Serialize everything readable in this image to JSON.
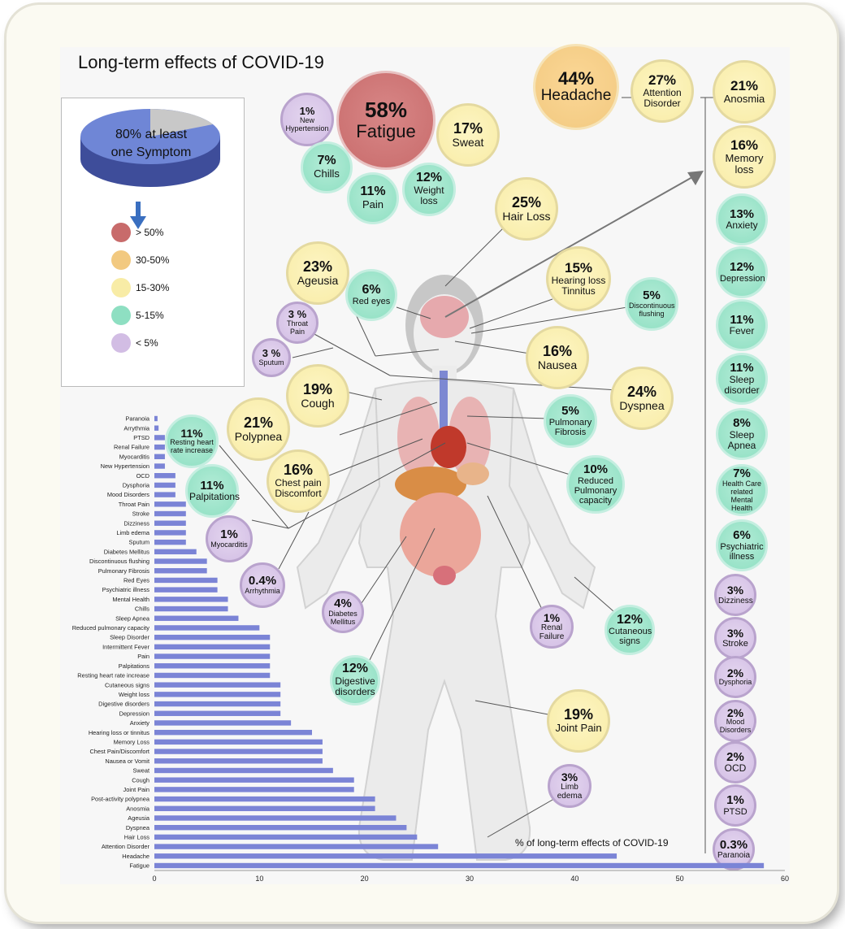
{
  "title": "Long-term effects of COVID-19",
  "pie": {
    "label_line1": "80% at least",
    "label_line2": "one Symptom",
    "percent": 80
  },
  "legend": [
    {
      "label": "> 50%",
      "color": "#c86b6b"
    },
    {
      "label": "30-50%",
      "color": "#f2c980"
    },
    {
      "label": "15-30%",
      "color": "#f8eca6"
    },
    {
      "label": "5-15%",
      "color": "#8edfc2"
    },
    {
      "label": "< 5%",
      "color": "#d2bde4"
    }
  ],
  "bubbles": [
    {
      "pct": "58%",
      "label": "Fatigue",
      "cls": "red"
    },
    {
      "pct": "1%",
      "label": "New Hypertension",
      "cls": "purple"
    },
    {
      "pct": "17%",
      "label": "Sweat",
      "cls": "yellow"
    },
    {
      "pct": "7%",
      "label": "Chills",
      "cls": "teal"
    },
    {
      "pct": "11%",
      "label": "Pain",
      "cls": "teal"
    },
    {
      "pct": "12%",
      "label": "Weight loss",
      "cls": "teal"
    },
    {
      "pct": "44%",
      "label": "Headache",
      "cls": "orange"
    },
    {
      "pct": "27%",
      "label": "Attention Disorder",
      "cls": "yellow"
    },
    {
      "pct": "25%",
      "label": "Hair Loss",
      "cls": "yellow"
    },
    {
      "pct": "23%",
      "label": "Ageusia",
      "cls": "yellow"
    },
    {
      "pct": "6%",
      "label": "Red eyes",
      "cls": "teal"
    },
    {
      "pct": "15%",
      "label": "Hearing loss Tinnitus",
      "cls": "yellow"
    },
    {
      "pct": "5%",
      "label": "Discontinuous flushing",
      "cls": "teal"
    },
    {
      "pct": "3 %",
      "label": "Throat Pain",
      "cls": "purple"
    },
    {
      "pct": "3 %",
      "label": "Sputum",
      "cls": "purple"
    },
    {
      "pct": "16%",
      "label": "Nausea",
      "cls": "yellow"
    },
    {
      "pct": "19%",
      "label": "Cough",
      "cls": "yellow"
    },
    {
      "pct": "24%",
      "label": "Dyspnea",
      "cls": "yellow"
    },
    {
      "pct": "11%",
      "label": "Resting heart rate increase",
      "cls": "teal"
    },
    {
      "pct": "21%",
      "label": "Polypnea",
      "cls": "yellow"
    },
    {
      "pct": "5%",
      "label": "Pulmonary Fibrosis",
      "cls": "teal"
    },
    {
      "pct": "16%",
      "label": "Chest pain Discomfort",
      "cls": "yellow"
    },
    {
      "pct": "11%",
      "label": "Palpitations",
      "cls": "teal"
    },
    {
      "pct": "10%",
      "label": "Reduced Pulmonary capacity",
      "cls": "teal"
    },
    {
      "pct": "1%",
      "label": "Myocarditis",
      "cls": "purple"
    },
    {
      "pct": "0.4%",
      "label": "Arrhythmia",
      "cls": "purple"
    },
    {
      "pct": "4%",
      "label": "Diabetes Mellitus",
      "cls": "purple"
    },
    {
      "pct": "1%",
      "label": "Renal Failure",
      "cls": "purple"
    },
    {
      "pct": "12%",
      "label": "Cutaneous signs",
      "cls": "teal"
    },
    {
      "pct": "12%",
      "label": "Digestive disorders",
      "cls": "teal"
    },
    {
      "pct": "19%",
      "label": "Joint Pain",
      "cls": "yellow"
    },
    {
      "pct": "3%",
      "label": "Limb edema",
      "cls": "purple"
    },
    {
      "pct": "21%",
      "label": "Anosmia",
      "cls": "yellow"
    },
    {
      "pct": "16%",
      "label": "Memory loss",
      "cls": "yellow"
    },
    {
      "pct": "13%",
      "label": "Anxiety",
      "cls": "teal"
    },
    {
      "pct": "12%",
      "label": "Depression",
      "cls": "teal"
    },
    {
      "pct": "11%",
      "label": "Fever",
      "cls": "teal"
    },
    {
      "pct": "11%",
      "label": "Sleep disorder",
      "cls": "teal"
    },
    {
      "pct": "8%",
      "label": "Sleep Apnea",
      "cls": "teal"
    },
    {
      "pct": "7%",
      "label": "Health Care related Mental Health",
      "cls": "teal"
    },
    {
      "pct": "6%",
      "label": "Psychiatric illness",
      "cls": "teal"
    },
    {
      "pct": "3%",
      "label": "Dizziness",
      "cls": "purple"
    },
    {
      "pct": "3%",
      "label": "Stroke",
      "cls": "purple"
    },
    {
      "pct": "2%",
      "label": "Dysphoria",
      "cls": "purple"
    },
    {
      "pct": "2%",
      "label": "Mood Disorders",
      "cls": "purple"
    },
    {
      "pct": "2%",
      "label": "OCD",
      "cls": "purple"
    },
    {
      "pct": "1%",
      "label": "PTSD",
      "cls": "purple"
    },
    {
      "pct": "0.3%",
      "label": "Paranoia",
      "cls": "purple"
    }
  ],
  "chart_data": {
    "type": "bar",
    "orientation": "horizontal",
    "xlabel": "% of long-term effects of COVID-19",
    "xlim": [
      0,
      60
    ],
    "xticks": [
      0,
      10,
      20,
      30,
      40,
      50,
      60
    ],
    "bar_color": "#7b84d6",
    "categories": [
      "Paranoia",
      "Arrythmia",
      "PTSD",
      "Renal Failure",
      "Myocarditis",
      "New Hypertension",
      "OCD",
      "Dysphoria",
      "Mood Disorders",
      "Throat Pain",
      "Stroke",
      "Dizziness",
      "Limb edema",
      "Sputum",
      "Diabetes Mellitus",
      "Discontinuous flushing",
      "Pulmonary Fibrosis",
      "Red Eyes",
      "Psychiatric illness",
      "Mental Health",
      "Chills",
      "Sleep Apnea",
      "Reduced pulmonary capacity",
      "Sleep Disorder",
      "Intermittent Fever",
      "Pain",
      "Palpitations",
      "Resting heart rate increase",
      "Cutaneous signs",
      "Weight loss",
      "Digestive disorders",
      "Depression",
      "Anxiety",
      "Hearing loss or tinnitus",
      "Memory Loss",
      "Chest Pain/Discomfort",
      "Nausea or Vomit",
      "Sweat",
      "Cough",
      "Joint Pain",
      "Post-activity polypnea",
      "Anosmia",
      "Ageusia",
      "Dyspnea",
      "Hair Loss",
      "Attention Disorder",
      "Headache",
      "Fatigue"
    ],
    "values": [
      0.3,
      0.4,
      1,
      1,
      1,
      1,
      2,
      2,
      2,
      3,
      3,
      3,
      3,
      3,
      4,
      5,
      5,
      6,
      6,
      7,
      7,
      8,
      10,
      11,
      11,
      11,
      11,
      11,
      12,
      12,
      12,
      12,
      13,
      15,
      16,
      16,
      16,
      17,
      19,
      19,
      21,
      21,
      23,
      24,
      25,
      27,
      44,
      58
    ]
  }
}
